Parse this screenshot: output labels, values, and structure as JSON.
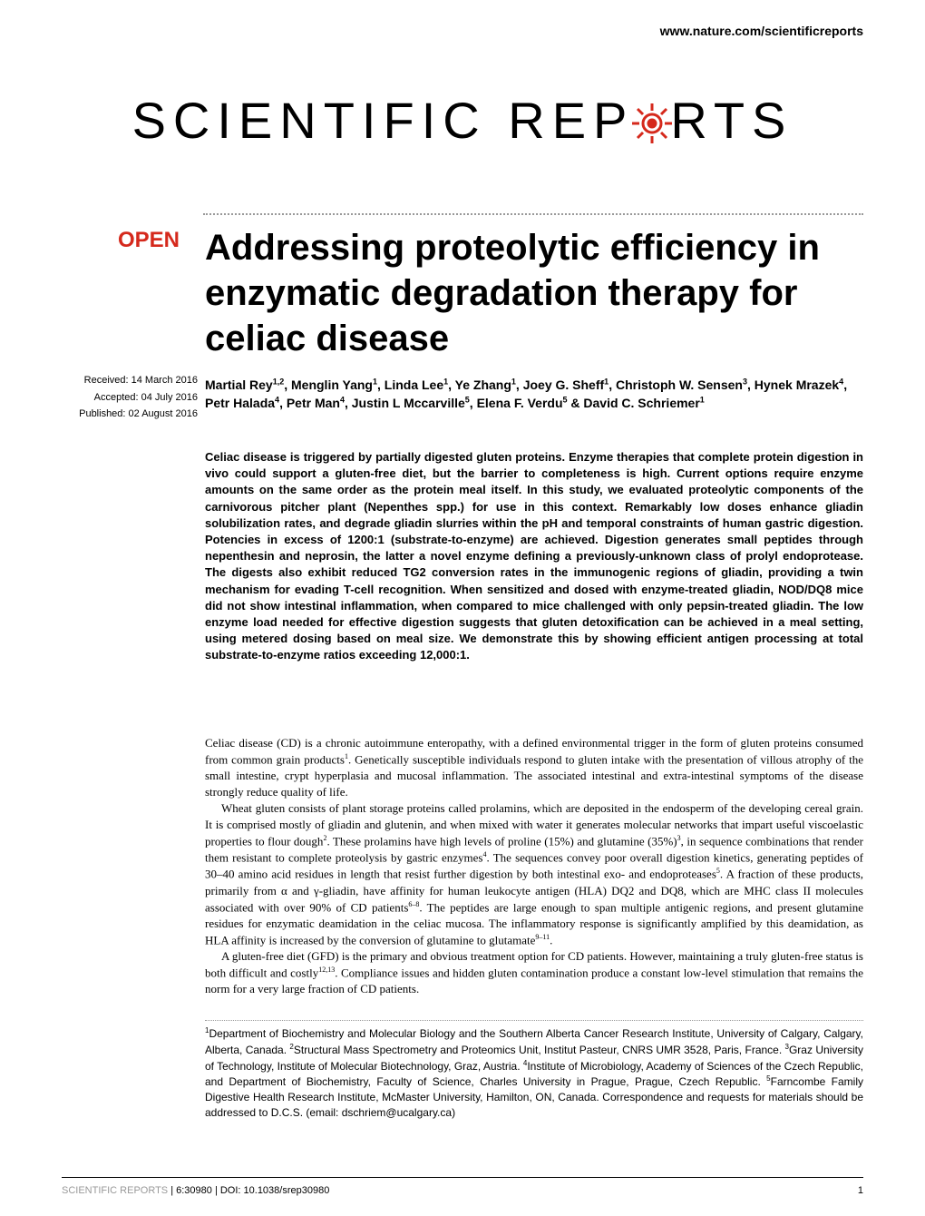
{
  "header": {
    "url": "www.nature.com/scientificreports"
  },
  "logo": {
    "text_before": "SCIENTIFIC ",
    "text_mid": "REP",
    "text_after": "RTS",
    "gear_color": "#d5291c"
  },
  "badge": {
    "open": "OPEN"
  },
  "article": {
    "title": "Addressing proteolytic efficiency in enzymatic degradation therapy for celiac disease"
  },
  "metadata": {
    "received": "Received: 14 March 2016",
    "accepted": "Accepted: 04 July 2016",
    "published": "Published: 02 August 2016"
  },
  "authors": {
    "html": "Martial Rey<sup>1,2</sup>, Menglin Yang<sup>1</sup>, Linda Lee<sup>1</sup>, Ye Zhang<sup>1</sup>, Joey G. Sheff<sup>1</sup>, Christoph W. Sensen<sup>3</sup>, Hynek Mrazek<sup>4</sup>, Petr Halada<sup>4</sup>, Petr Man<sup>4</sup>, Justin L Mccarville<sup>5</sup>, Elena F. Verdu<sup>5</sup> & David C. Schriemer<sup>1</sup>"
  },
  "abstract": {
    "text": "Celiac disease is triggered by partially digested gluten proteins. Enzyme therapies that complete protein digestion in vivo could support a gluten-free diet, but the barrier to completeness is high. Current options require enzyme amounts on the same order as the protein meal itself. In this study, we evaluated proteolytic components of the carnivorous pitcher plant (Nepenthes spp.) for use in this context. Remarkably low doses enhance gliadin solubilization rates, and degrade gliadin slurries within the pH and temporal constraints of human gastric digestion. Potencies in excess of 1200:1 (substrate-to-enzyme) are achieved. Digestion generates small peptides through nepenthesin and neprosin, the latter a novel enzyme defining a previously-unknown class of prolyl endoprotease. The digests also exhibit reduced TG2 conversion rates in the immunogenic regions of gliadin, providing a twin mechanism for evading T-cell recognition. When sensitized and dosed with enzyme-treated gliadin, NOD/DQ8 mice did not show intestinal inflammation, when compared to mice challenged with only pepsin-treated gliadin. The low enzyme load needed for effective digestion suggests that gluten detoxification can be achieved in a meal setting, using metered dosing based on meal size. We demonstrate this by showing efficient antigen processing at total substrate-to-enzyme ratios exceeding 12,000:1."
  },
  "body": {
    "p1": "Celiac disease (CD) is a chronic autoimmune enteropathy, with a defined environmental trigger in the form of gluten proteins consumed from common grain products<sup>1</sup>. Genetically susceptible individuals respond to gluten intake with the presentation of villous atrophy of the small intestine, crypt hyperplasia and mucosal inflammation. The associated intestinal and extra-intestinal symptoms of the disease strongly reduce quality of life.",
    "p2": "Wheat gluten consists of plant storage proteins called prolamins, which are deposited in the endosperm of the developing cereal grain. It is comprised mostly of gliadin and glutenin, and when mixed with water it generates molecular networks that impart useful viscoelastic properties to flour dough<sup>2</sup>. These prolamins have high levels of proline (15%) and glutamine (35%)<sup>3</sup>, in sequence combinations that render them resistant to complete proteolysis by gastric enzymes<sup>4</sup>. The sequences convey poor overall digestion kinetics, generating peptides of 30–40 amino acid residues in length that resist further digestion by both intestinal exo- and endoproteases<sup>5</sup>. A fraction of these products, primarily from α and γ-gliadin, have affinity for human leukocyte antigen (HLA) DQ2 and DQ8, which are MHC class II molecules associated with over 90% of CD patients<sup>6–8</sup>. The peptides are large enough to span multiple antigenic regions, and present glutamine residues for enzymatic deamidation in the celiac mucosa. The inflammatory response is significantly amplified by this deamidation, as HLA affinity is increased by the conversion of glutamine to glutamate<sup>9–11</sup>.",
    "p3": "A gluten-free diet (GFD) is the primary and obvious treatment option for CD patients. However, maintaining a truly gluten-free status is both difficult and costly<sup>12,13</sup>. Compliance issues and hidden gluten contamination produce a constant low-level stimulation that remains the norm for a very large fraction of CD patients."
  },
  "affiliations": {
    "html": "<sup>1</sup>Department of Biochemistry and Molecular Biology and the Southern Alberta Cancer Research Institute, University of Calgary, Calgary, Alberta, Canada. <sup>2</sup>Structural Mass Spectrometry and Proteomics Unit, Institut Pasteur, CNRS UMR 3528, Paris, France. <sup>3</sup>Graz University of Technology, Institute of Molecular Biotechnology, Graz, Austria. <sup>4</sup>Institute of Microbiology, Academy of Sciences of the Czech Republic, and Department of Biochemistry, Faculty of Science, Charles University in Prague, Prague, Czech Republic. <sup>5</sup>Farncombe Family Digestive Health Research Institute, McMaster University, Hamilton, ON, Canada. Correspondence and requests for materials should be addressed to D.C.S. (email: dschriem@ucalgary.ca)"
  },
  "footer": {
    "journal": "SCIENTIFIC REPORTS",
    "citation": " | 6:30980 | DOI: 10.1038/srep30980",
    "page": "1"
  },
  "colors": {
    "accent": "#d5291c",
    "text": "#000000",
    "muted": "#999999"
  }
}
